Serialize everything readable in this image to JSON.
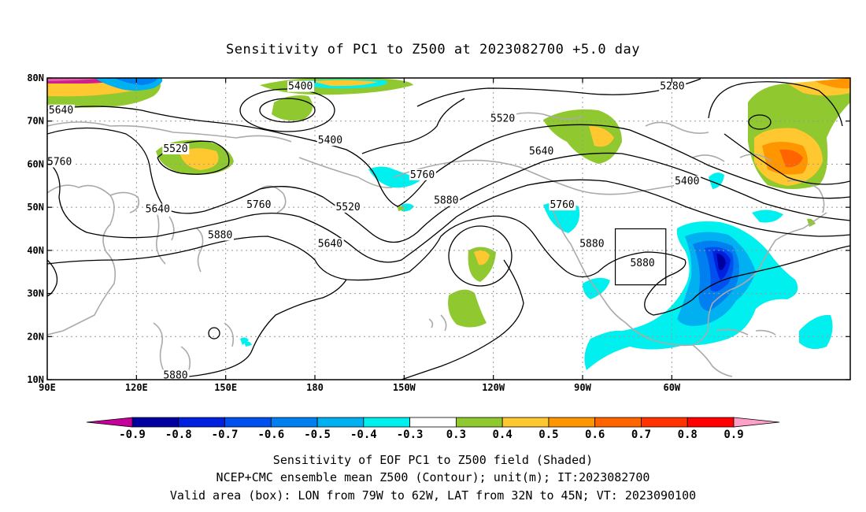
{
  "title": "Sensitivity of PC1 to Z500 at 2023082700 +5.0 day",
  "lat_ticks": [
    "80N",
    "70N",
    "60N",
    "50N",
    "40N",
    "30N",
    "20N",
    "10N"
  ],
  "lon_ticks": [
    "90E",
    "120E",
    "150E",
    "180",
    "150W",
    "120W",
    "90W",
    "60W"
  ],
  "contour_labels": [
    {
      "text": "5400",
      "lon": 171,
      "lat": 77.5
    },
    {
      "text": "5280",
      "lon": -64,
      "lat": 77.5
    },
    {
      "text": "5640",
      "lon": 90.5,
      "lat": 72
    },
    {
      "text": "5520",
      "lon": -121,
      "lat": 70
    },
    {
      "text": "5400",
      "lon": -179,
      "lat": 65
    },
    {
      "text": "5520",
      "lon": 129,
      "lat": 63
    },
    {
      "text": "5640",
      "lon": -108,
      "lat": 62.5
    },
    {
      "text": "5760",
      "lon": 90,
      "lat": 60
    },
    {
      "text": "5760",
      "lon": -148,
      "lat": 57
    },
    {
      "text": "5400",
      "lon": -59,
      "lat": 55.5
    },
    {
      "text": "5880",
      "lon": -140,
      "lat": 51
    },
    {
      "text": "5760",
      "lon": -101,
      "lat": 50
    },
    {
      "text": "5760",
      "lon": 157,
      "lat": 50
    },
    {
      "text": "5520",
      "lon": -173,
      "lat": 49.5
    },
    {
      "text": "5640",
      "lon": 123,
      "lat": 49
    },
    {
      "text": "5880",
      "lon": 144,
      "lat": 43
    },
    {
      "text": "5640",
      "lon": -179,
      "lat": 41
    },
    {
      "text": "5880",
      "lon": -91,
      "lat": 41
    },
    {
      "text": "5880",
      "lon": -74,
      "lat": 36.5
    },
    {
      "text": "5880",
      "lon": 129,
      "lat": 10.5
    }
  ],
  "colorbar": {
    "levels": [
      "-0.9",
      "-0.8",
      "-0.7",
      "-0.6",
      "-0.5",
      "-0.4",
      "-0.3",
      "0.3",
      "0.4",
      "0.5",
      "0.6",
      "0.7",
      "0.8",
      "0.9"
    ],
    "colors": [
      "#0000a0",
      "#0020e0",
      "#0050f0",
      "#0080f0",
      "#00b0f0",
      "#00f0f0",
      "#ffffff",
      "#90c830",
      "#ffc830",
      "#ff9600",
      "#ff6400",
      "#ff3200",
      "#ff0000"
    ],
    "low_extend_color": "#c8009b",
    "high_extend_color": "#ffa0c8"
  },
  "valid_box": {
    "lon_from": -79,
    "lon_to": -62,
    "lat_from": 32,
    "lat_to": 45
  },
  "footer": [
    "Sensitivity of EOF PC1 to Z500 field (Shaded)",
    "NCEP+CMC ensemble mean Z500 (Contour); unit(m); IT:2023082700",
    "Valid area (box): LON from 79W to 62W, LAT from 32N to 45N; VT: 2023090100"
  ]
}
